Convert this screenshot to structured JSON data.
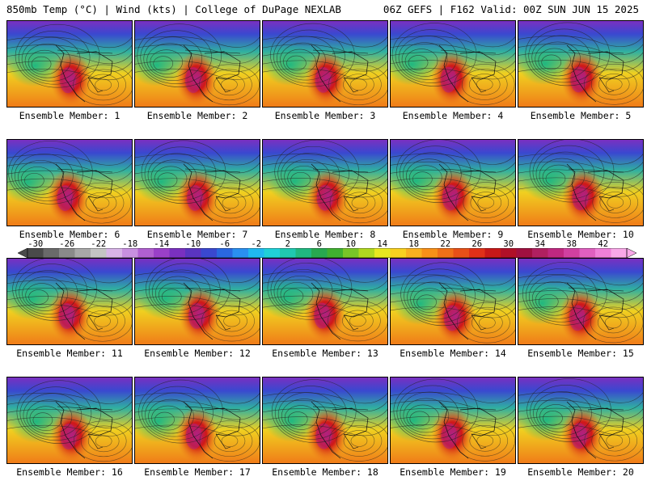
{
  "header": {
    "left_title": "850mb Temp (°C) | Wind (kts) | College of DuPage NEXLAB",
    "right_title": "06Z GEFS | F162 Valid: 00Z SUN JUN 15 2025"
  },
  "panels": [
    {
      "label": "Ensemble Member: 1"
    },
    {
      "label": "Ensemble Member: 2"
    },
    {
      "label": "Ensemble Member: 3"
    },
    {
      "label": "Ensemble Member: 4"
    },
    {
      "label": "Ensemble Member: 5"
    },
    {
      "label": "Ensemble Member: 6"
    },
    {
      "label": "Ensemble Member: 7"
    },
    {
      "label": "Ensemble Member: 8"
    },
    {
      "label": "Ensemble Member: 9"
    },
    {
      "label": "Ensemble Member: 10"
    },
    {
      "label": "Ensemble Member: 11"
    },
    {
      "label": "Ensemble Member: 12"
    },
    {
      "label": "Ensemble Member: 13"
    },
    {
      "label": "Ensemble Member: 14"
    },
    {
      "label": "Ensemble Member: 15"
    },
    {
      "label": "Ensemble Member: 16"
    },
    {
      "label": "Ensemble Member: 17"
    },
    {
      "label": "Ensemble Member: 18"
    },
    {
      "label": "Ensemble Member: 19"
    },
    {
      "label": "Ensemble Member: 20"
    }
  ],
  "colorbar": {
    "ticks": [
      "-30",
      "-26",
      "-22",
      "-18",
      "-14",
      "-10",
      "-6",
      "-2",
      "2",
      "6",
      "10",
      "14",
      "18",
      "22",
      "26",
      "30",
      "34",
      "38",
      "42"
    ],
    "colors": [
      "#4a4a4a",
      "#6a6a6a",
      "#8a8a8a",
      "#a8a8a8",
      "#c4c4c4",
      "#d8b4e8",
      "#c890e0",
      "#b060d0",
      "#9a40c8",
      "#7a30c0",
      "#5a34c0",
      "#3a48d0",
      "#2a68e0",
      "#2a90f0",
      "#20b8f0",
      "#20d0d8",
      "#20c8b0",
      "#20b880",
      "#28a850",
      "#40b030",
      "#78c428",
      "#b0d820",
      "#e8e820",
      "#f8d020",
      "#f8b020",
      "#f89018",
      "#f07018",
      "#e85018",
      "#e03018",
      "#c81818",
      "#b01028",
      "#a01040",
      "#b02060",
      "#c02880",
      "#d040a0",
      "#e060c0",
      "#f080d8",
      "#f8a8e8"
    ]
  },
  "map_colors": {
    "ocean_cool": "#30b0a0",
    "ocean_warm": "#f0d020",
    "land_warm": "#f07818",
    "heat_core": "#d01818",
    "heat_peak": "#b02080",
    "north_cold": "#3a48d0",
    "arctic": "#7a30c0"
  }
}
